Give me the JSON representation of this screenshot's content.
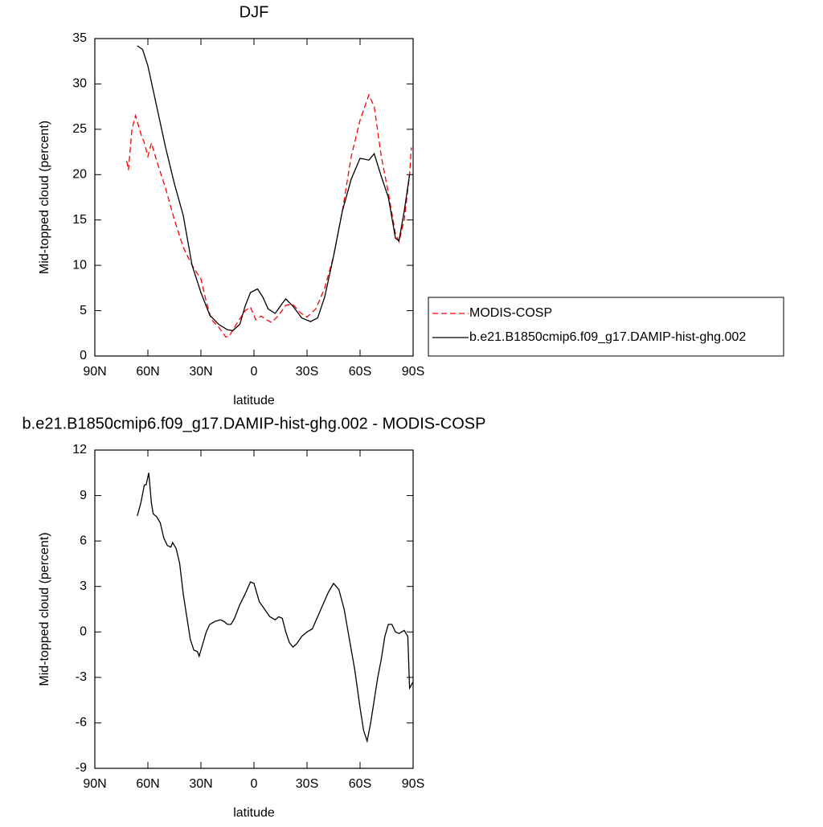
{
  "chart_data": [
    {
      "type": "line",
      "title": "DJF",
      "xlabel": "latitude",
      "ylabel": "Mid-topped cloud (percent)",
      "xlim": [
        90,
        -90
      ],
      "ylim": [
        0,
        35
      ],
      "xticks": [
        {
          "value": 90,
          "label": "90N"
        },
        {
          "value": 60,
          "label": "60N"
        },
        {
          "value": 30,
          "label": "30N"
        },
        0,
        {
          "value": -30,
          "label": "30S"
        },
        {
          "value": -60,
          "label": "60S"
        },
        {
          "value": -90,
          "label": "90S"
        }
      ],
      "yticks": [
        0,
        5,
        10,
        15,
        20,
        25,
        30,
        35
      ],
      "legend": "right",
      "series": [
        {
          "name": "MODIS-COSP",
          "color": "#ff0000",
          "style": "dashed",
          "x": [
            72,
            71,
            69,
            67,
            64,
            62,
            60,
            58,
            55,
            50,
            45,
            40,
            35,
            30,
            27,
            24,
            20,
            16,
            14,
            10,
            5,
            2,
            -1,
            -4,
            -7,
            -10,
            -14,
            -18,
            -22,
            -26,
            -30,
            -35,
            -40,
            -45,
            -50,
            -55,
            -60,
            -65,
            -68,
            -72,
            -76,
            -80,
            -82,
            -85,
            -88,
            -89
          ],
          "values": [
            21.5,
            20.5,
            25,
            26.5,
            24.5,
            23.5,
            22,
            23.5,
            21.5,
            18.5,
            15,
            12,
            10,
            8.5,
            6,
            4,
            3.2,
            2.1,
            2.2,
            3.5,
            5,
            5.4,
            4.0,
            4.4,
            4,
            3.7,
            4.5,
            5.6,
            5.7,
            4.8,
            4.3,
            5.2,
            7.5,
            11,
            16,
            22,
            26,
            28.8,
            27.5,
            22,
            18,
            13.5,
            12.6,
            15,
            20,
            23
          ]
        },
        {
          "name": "b.e21.B1850cmip6.f09_g17.DAMIP-hist-ghg.002",
          "color": "#000000",
          "style": "solid",
          "x": [
            66,
            63,
            60,
            55,
            50,
            45,
            40,
            35,
            30,
            25,
            20,
            15,
            12,
            8,
            5,
            2,
            -2,
            -5,
            -8,
            -12,
            -16,
            -18,
            -22,
            -27,
            -32,
            -36,
            -40,
            -45,
            -50,
            -55,
            -60,
            -65,
            -68,
            -72,
            -76,
            -80,
            -82,
            -85,
            -88
          ],
          "values": [
            34.2,
            33.8,
            32,
            27.5,
            23,
            19,
            15.5,
            10,
            7,
            4.5,
            3.5,
            2.9,
            2.8,
            3.5,
            5.5,
            7.0,
            7.4,
            6.5,
            5.2,
            4.7,
            5.8,
            6.3,
            5.5,
            4.2,
            3.8,
            4.2,
            6.5,
            11,
            16,
            19.5,
            21.8,
            21.6,
            22.3,
            19.8,
            17.5,
            13,
            12.7,
            16,
            20
          ]
        }
      ]
    },
    {
      "type": "line",
      "title": "b.e21.B1850cmip6.f09_g17.DAMIP-hist-ghg.002 - MODIS-COSP",
      "xlabel": "latitude",
      "ylabel": "Mid-topped cloud (percent)",
      "xlim": [
        90,
        -90
      ],
      "ylim": [
        -9,
        12
      ],
      "xticks": [
        {
          "value": 90,
          "label": "90N"
        },
        {
          "value": 60,
          "label": "60N"
        },
        {
          "value": 30,
          "label": "30N"
        },
        0,
        {
          "value": -30,
          "label": "30S"
        },
        {
          "value": -60,
          "label": "60S"
        },
        {
          "value": -90,
          "label": "90S"
        }
      ],
      "yticks": [
        -9,
        -6,
        -3,
        0,
        3,
        6,
        9,
        12
      ],
      "series": [
        {
          "color": "#000000",
          "style": "solid",
          "x": [
            66,
            64,
            62,
            61,
            59.5,
            58,
            57,
            55,
            53,
            51,
            49,
            47,
            46,
            44,
            42,
            40,
            38,
            36,
            34,
            32,
            31,
            29,
            27,
            25,
            22,
            19,
            17,
            15,
            13,
            11,
            8,
            5,
            2,
            0,
            -3,
            -6,
            -9,
            -12,
            -14,
            -16,
            -18,
            -20,
            -22,
            -24,
            -27,
            -30,
            -33,
            -36,
            -39,
            -42,
            -45,
            -48,
            -51,
            -54,
            -57,
            -60,
            -62,
            -64,
            -66,
            -68,
            -70,
            -72,
            -74,
            -76,
            -78,
            -80,
            -82,
            -85,
            -87,
            -88,
            -90
          ],
          "values": [
            7.65,
            8.5,
            9.7,
            9.7,
            10.5,
            8.5,
            7.8,
            7.6,
            7.2,
            6.2,
            5.7,
            5.6,
            5.9,
            5.5,
            4.5,
            2.5,
            1.0,
            -0.5,
            -1.2,
            -1.3,
            -1.6,
            -0.8,
            0,
            0.5,
            0.7,
            0.8,
            0.7,
            0.5,
            0.5,
            0.9,
            1.8,
            2.5,
            3.3,
            3.2,
            2.0,
            1.5,
            1.0,
            0.8,
            1.0,
            0.9,
            0.0,
            -0.7,
            -1.0,
            -0.8,
            -0.3,
            0.0,
            0.2,
            1.0,
            1.8,
            2.6,
            3.2,
            2.8,
            1.5,
            -0.5,
            -2.5,
            -5,
            -6.5,
            -7.2,
            -6,
            -4.5,
            -3,
            -1.8,
            -0.3,
            0.5,
            0.5,
            0.0,
            -0.1,
            0.1,
            -0.3,
            -3.7,
            -3.3
          ]
        }
      ]
    }
  ]
}
